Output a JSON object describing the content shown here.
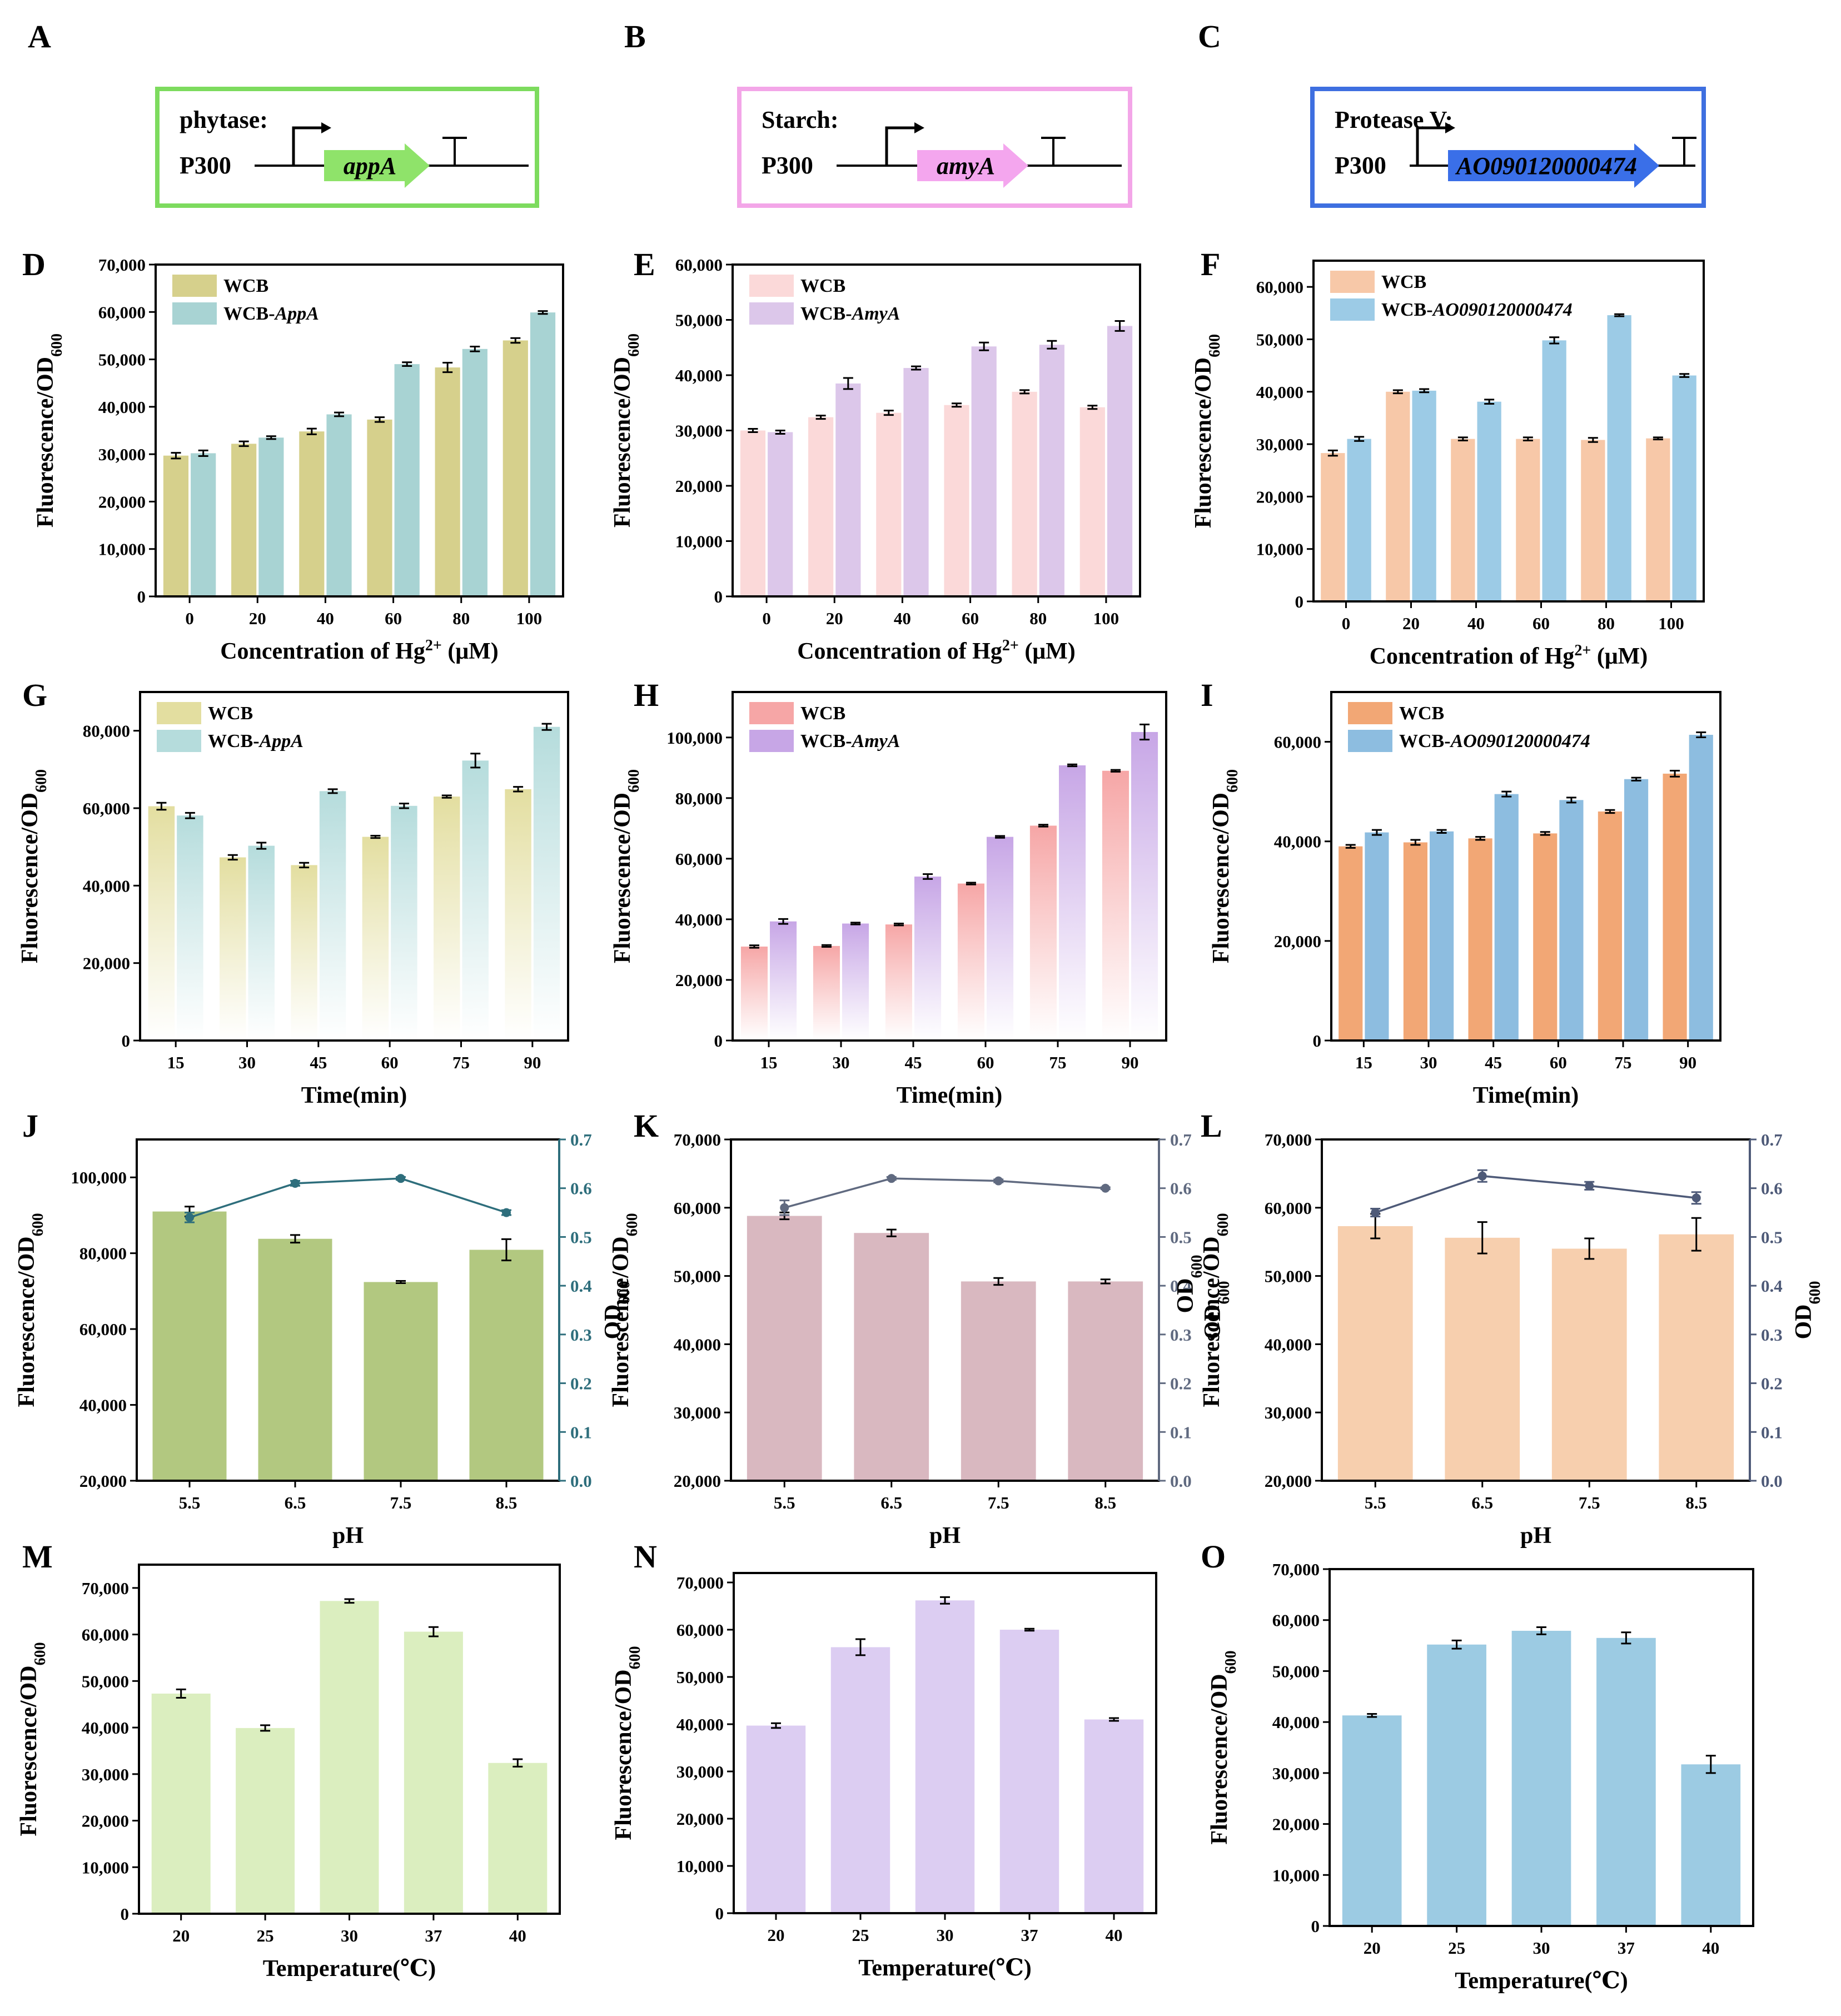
{
  "constructs": [
    {
      "panel": "A",
      "label": "phytase:",
      "promoter": "P300",
      "gene": "appA",
      "border": "#7ddb5e",
      "fill": "#8fe36a"
    },
    {
      "panel": "B",
      "label": "Starch:",
      "promoter": "P300",
      "gene": "amyA",
      "border": "#f3a6e8",
      "fill": "#f4a6ee"
    },
    {
      "panel": "C",
      "label": "Protease V:",
      "promoter": "P300",
      "gene": "AO090120000474",
      "border": "#3e6fe0",
      "fill": "#3a6fe8"
    }
  ],
  "chart_data": [
    {
      "panel": "D",
      "type": "bar",
      "title": "",
      "categories": [
        "0",
        "20",
        "40",
        "60",
        "80",
        "100"
      ],
      "xlabel": "Concentration of Hg",
      "xlabel_sup": "2+",
      "xlabel_suffix": " (μM)",
      "ylabel": "Fluorescence/OD",
      "ylabel_sub": "600",
      "ylim": [
        0,
        70000
      ],
      "yticks": [
        "0",
        "10,000",
        "20,000",
        "30,000",
        "40,000",
        "50,000",
        "60,000",
        "70,000"
      ],
      "series": [
        {
          "name": "WCB",
          "values": [
            29700,
            32200,
            34800,
            37300,
            48300,
            54000
          ],
          "errors": [
            600,
            500,
            600,
            500,
            1000,
            500
          ],
          "color": "#d6d08c"
        },
        {
          "name": "WCB-AppA",
          "legend_plain": "WCB-",
          "legend_italic": "AppA",
          "values": [
            30200,
            33500,
            38400,
            49000,
            52200,
            59900
          ],
          "errors": [
            600,
            300,
            400,
            400,
            500,
            300
          ],
          "color": "#a8d3d3"
        }
      ]
    },
    {
      "panel": "E",
      "type": "bar",
      "title": "",
      "categories": [
        "0",
        "20",
        "40",
        "60",
        "80",
        "100"
      ],
      "xlabel": "Concentration of Hg",
      "xlabel_sup": "2+",
      "xlabel_suffix": " (μM)",
      "ylabel": "Fluorescence/OD",
      "ylabel_sub": "600",
      "ylim": [
        0,
        60000
      ],
      "yticks": [
        "0",
        "10,000",
        "20,000",
        "30,000",
        "40,000",
        "50,000",
        "60,000"
      ],
      "series": [
        {
          "name": "WCB",
          "values": [
            30000,
            32400,
            33200,
            34600,
            37000,
            34200
          ],
          "errors": [
            300,
            300,
            400,
            300,
            300,
            300
          ],
          "color": "#fbd9d9"
        },
        {
          "name": "WCB-AmyA",
          "legend_plain": "WCB-",
          "legend_italic": "AmyA",
          "values": [
            29700,
            38500,
            41300,
            45200,
            45500,
            48900
          ],
          "errors": [
            300,
            1000,
            300,
            700,
            700,
            900
          ],
          "color": "#dcc7ea"
        }
      ]
    },
    {
      "panel": "F",
      "type": "bar",
      "title": "",
      "categories": [
        "0",
        "20",
        "40",
        "60",
        "80",
        "100"
      ],
      "xlabel": "Concentration of Hg",
      "xlabel_sup": "2+",
      "xlabel_suffix": " (μM)",
      "ylabel": "Fluorescence/OD",
      "ylabel_sub": "600",
      "ylim": [
        0,
        65000
      ],
      "yticks": [
        "0",
        "10,000",
        "20,000",
        "30,000",
        "40,000",
        "50,000",
        "60,000"
      ],
      "series": [
        {
          "name": "WCB",
          "values": [
            28300,
            40000,
            31000,
            31000,
            30800,
            31100
          ],
          "errors": [
            500,
            300,
            300,
            300,
            400,
            200
          ],
          "color": "#f7c8a8"
        },
        {
          "name": "WCB-AO090120000474",
          "legend_plain": "WCB-",
          "legend_italic": "AO090120000474",
          "values": [
            31000,
            40200,
            38100,
            49800,
            54600,
            43100
          ],
          "errors": [
            400,
            300,
            400,
            600,
            200,
            300
          ],
          "color": "#9ccbe6"
        }
      ]
    },
    {
      "panel": "G",
      "type": "bar",
      "title": "",
      "categories": [
        "15",
        "30",
        "45",
        "60",
        "75",
        "90"
      ],
      "xlabel": "Time(min)",
      "ylabel": "Fluorescence/OD",
      "ylabel_sub": "600",
      "ylim": [
        0,
        90000
      ],
      "yticks": [
        "0",
        "20,000",
        "40,000",
        "60,000",
        "80,000"
      ],
      "series": [
        {
          "name": "WCB",
          "values": [
            60500,
            47300,
            45300,
            52600,
            63000,
            64900
          ],
          "errors": [
            900,
            600,
            600,
            300,
            300,
            600
          ],
          "color": "#e3dea0",
          "fade": true
        },
        {
          "name": "WCB-AppA",
          "legend_plain": "WCB-",
          "legend_italic": "AppA",
          "values": [
            58100,
            50300,
            64400,
            60600,
            72300,
            81000
          ],
          "errors": [
            700,
            800,
            500,
            600,
            1800,
            800
          ],
          "color": "#b5dcdc",
          "fade": true
        }
      ]
    },
    {
      "panel": "H",
      "type": "bar",
      "title": "",
      "categories": [
        "15",
        "30",
        "45",
        "60",
        "75",
        "90"
      ],
      "xlabel": "Time(min)",
      "ylabel": "Fluorescence/OD",
      "ylabel_sub": "600",
      "ylim": [
        0,
        115000
      ],
      "yticks": [
        "0",
        "20,000",
        "40,000",
        "60,000",
        "80,000",
        "100,000"
      ],
      "series": [
        {
          "name": "WCB",
          "values": [
            31000,
            31200,
            38300,
            51800,
            70900,
            89000
          ],
          "errors": [
            400,
            300,
            300,
            300,
            300,
            300
          ],
          "color": "#f6a6a6",
          "fade": true
        },
        {
          "name": "WCB-AmyA",
          "legend_plain": "WCB-",
          "legend_italic": "AmyA",
          "values": [
            39300,
            38600,
            54100,
            67200,
            90800,
            101800
          ],
          "errors": [
            800,
            300,
            800,
            300,
            300,
            2500
          ],
          "color": "#c7a6e6",
          "fade": true
        }
      ]
    },
    {
      "panel": "I",
      "type": "bar",
      "title": "",
      "categories": [
        "15",
        "30",
        "45",
        "60",
        "75",
        "90"
      ],
      "xlabel": "Time(min)",
      "ylabel": "Fluorescence/OD",
      "ylabel_sub": "600",
      "ylim": [
        0,
        70000
      ],
      "yticks": [
        "0",
        "20,000",
        "40,000",
        "60,000"
      ],
      "series": [
        {
          "name": "WCB",
          "values": [
            39000,
            39800,
            40600,
            41600,
            46000,
            53600
          ],
          "errors": [
            300,
            500,
            300,
            300,
            300,
            600
          ],
          "color": "#f2a775"
        },
        {
          "name": "WCB-AO090120000474",
          "legend_plain": "WCB-",
          "legend_italic": "AO090120000474",
          "values": [
            41800,
            42000,
            49500,
            48300,
            52500,
            61400
          ],
          "errors": [
            500,
            300,
            500,
            500,
            300,
            500
          ],
          "color": "#8dbde0"
        }
      ]
    },
    {
      "panel": "J",
      "type": "bar",
      "title": "",
      "categories": [
        "5.5",
        "6.5",
        "7.5",
        "8.5"
      ],
      "xlabel": "pH",
      "ylabel": "Fluorescence/OD",
      "ylabel_sub": "600",
      "ylim": [
        20000,
        110000
      ],
      "yticks": [
        "20,000",
        "40,000",
        "60,000",
        "80,000",
        "100,000"
      ],
      "ylabel_right": "OD",
      "ylabel_right_sub": "600",
      "y2lim": [
        0,
        0.7
      ],
      "y2ticks": [
        "0.0",
        "0.1",
        "0.2",
        "0.3",
        "0.4",
        "0.5",
        "0.6",
        "0.7"
      ],
      "series": [
        {
          "name": "Fluorescence",
          "values": [
            91000,
            83800,
            72400,
            80900
          ],
          "errors": [
            1300,
            1000,
            300,
            2800
          ],
          "color": "#b2c880"
        }
      ],
      "line": {
        "name": "OD600",
        "values": [
          0.54,
          0.61,
          0.62,
          0.55
        ],
        "errors": [
          0.01,
          0.005,
          0.003,
          0.005
        ],
        "color": "#2e6e7c"
      }
    },
    {
      "panel": "K",
      "type": "bar",
      "title": "",
      "categories": [
        "5.5",
        "6.5",
        "7.5",
        "8.5"
      ],
      "xlabel": "pH",
      "ylabel": "Fluorescence/OD",
      "ylabel_sub": "600",
      "ylim": [
        20000,
        70000
      ],
      "yticks": [
        "20,000",
        "30,000",
        "40,000",
        "50,000",
        "60,000",
        "70,000"
      ],
      "ylabel_right": "OD",
      "ylabel_right_sub": "600",
      "y2lim": [
        0,
        0.7
      ],
      "y2ticks": [
        "0.0",
        "0.1",
        "0.2",
        "0.3",
        "0.4",
        "0.5",
        "0.6",
        "0.7"
      ],
      "series": [
        {
          "name": "Fluorescence",
          "values": [
            58800,
            56300,
            49200,
            49200
          ],
          "errors": [
            500,
            500,
            500,
            300
          ],
          "color": "#d9b8c0"
        }
      ],
      "line": {
        "name": "OD600",
        "values": [
          0.56,
          0.62,
          0.615,
          0.6
        ],
        "errors": [
          0.015,
          0.003,
          0.003,
          0.002
        ],
        "color": "#606a80"
      }
    },
    {
      "panel": "L",
      "type": "bar",
      "title": "",
      "categories": [
        "5.5",
        "6.5",
        "7.5",
        "8.5"
      ],
      "xlabel": "pH",
      "ylabel": "Fluorescence/OD",
      "ylabel_sub": "600",
      "ylim": [
        20000,
        70000
      ],
      "yticks": [
        "20,000",
        "30,000",
        "40,000",
        "50,000",
        "60,000",
        "70,000"
      ],
      "ylabel_right": "OD",
      "ylabel_right_sub": "600",
      "y2lim": [
        0,
        0.7
      ],
      "y2ticks": [
        "0.0",
        "0.1",
        "0.2",
        "0.3",
        "0.4",
        "0.5",
        "0.6",
        "0.7"
      ],
      "extra_left_label": "OD",
      "extra_left_label_sub": "600",
      "series": [
        {
          "name": "Fluorescence",
          "values": [
            57300,
            55600,
            54000,
            56100
          ],
          "errors": [
            1800,
            2300,
            1500,
            2400
          ],
          "color": "#f7cfae"
        }
      ],
      "line": {
        "name": "OD600",
        "values": [
          0.55,
          0.625,
          0.605,
          0.58
        ],
        "errors": [
          0.008,
          0.012,
          0.008,
          0.012
        ],
        "color": "#4e5a78"
      }
    },
    {
      "panel": "M",
      "type": "bar",
      "title": "",
      "categories": [
        "20",
        "25",
        "30",
        "37",
        "40"
      ],
      "xlabel": "Temperature(℃)",
      "ylabel": "Fluorescence/OD",
      "ylabel_sub": "600",
      "ylim": [
        0,
        75000
      ],
      "yticks": [
        "0",
        "10,000",
        "20,000",
        "30,000",
        "40,000",
        "50,000",
        "60,000",
        "70,000"
      ],
      "series": [
        {
          "name": "Fluorescence",
          "values": [
            47300,
            39900,
            67200,
            60600,
            32400
          ],
          "errors": [
            900,
            600,
            400,
            1000,
            800
          ],
          "color": "#dbeebf"
        }
      ]
    },
    {
      "panel": "N",
      "type": "bar",
      "title": "",
      "categories": [
        "20",
        "25",
        "30",
        "37",
        "40"
      ],
      "xlabel": "Temperature(℃)",
      "ylabel": "Fluorescence/OD",
      "ylabel_sub": "600",
      "ylim": [
        0,
        72000
      ],
      "yticks": [
        "0",
        "10,000",
        "20,000",
        "30,000",
        "40,000",
        "50,000",
        "60,000",
        "70,000"
      ],
      "series": [
        {
          "name": "Fluorescence",
          "values": [
            39700,
            56300,
            66200,
            60000,
            41000
          ],
          "errors": [
            500,
            1700,
            700,
            200,
            300
          ],
          "color": "#dccdf2"
        }
      ]
    },
    {
      "panel": "O",
      "type": "bar",
      "title": "",
      "categories": [
        "20",
        "25",
        "30",
        "37",
        "40"
      ],
      "xlabel": "Temperature(℃)",
      "ylabel": "Fluorescence/OD",
      "ylabel_sub": "600",
      "ylim": [
        0,
        70000
      ],
      "yticks": [
        "0",
        "10,000",
        "20,000",
        "30,000",
        "40,000",
        "50,000",
        "60,000",
        "70,000"
      ],
      "series": [
        {
          "name": "Fluorescence",
          "values": [
            41300,
            55200,
            57900,
            56500,
            31700
          ],
          "errors": [
            300,
            800,
            700,
            1100,
            1700
          ],
          "color": "#9ccbe3"
        }
      ]
    }
  ]
}
